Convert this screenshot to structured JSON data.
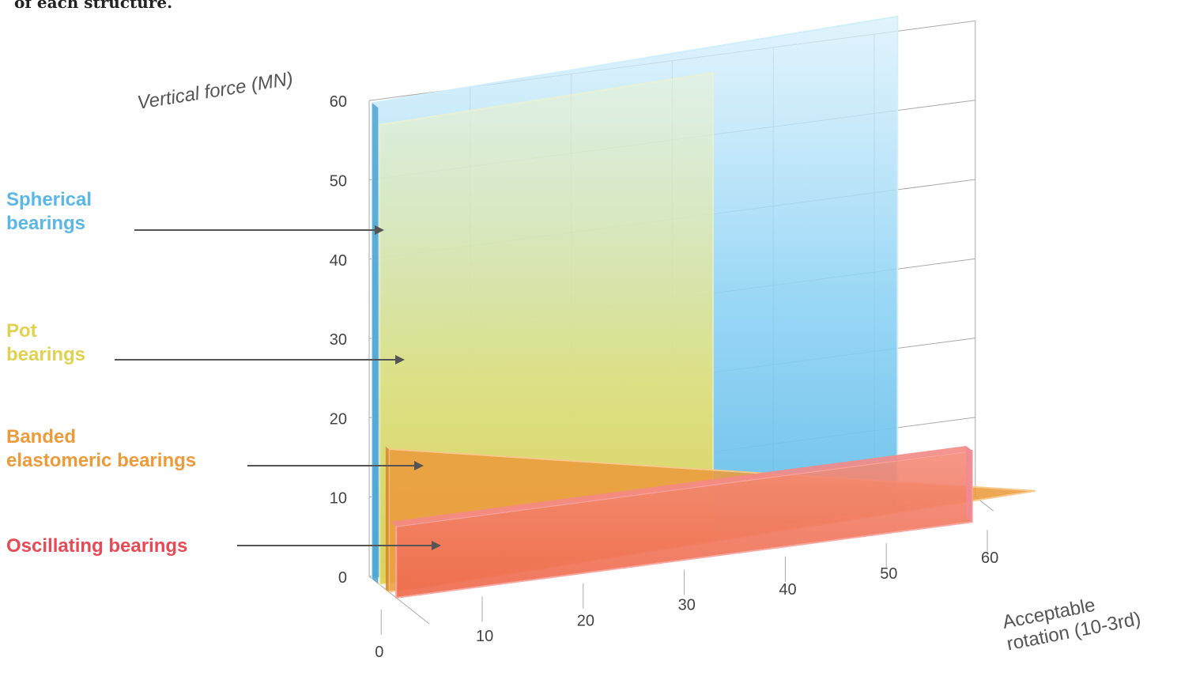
{
  "caption": "of each structure.",
  "colors": {
    "spherical": "#5BB8E6",
    "pot": "#E0D24F",
    "banded": "#EC9B3B",
    "oscillating": "#E84A55",
    "grid": "#A9A9A9",
    "arrow": "#555555"
  },
  "chart_data": {
    "type": "area",
    "grid": true,
    "ylabel": "Vertical force (MN)",
    "xlabel": "Acceptable rotation (10-3rd)",
    "yticks": [
      "0",
      "10",
      "20",
      "30",
      "40",
      "50",
      "60"
    ],
    "xticks": [
      "0",
      "10",
      "20",
      "30",
      "40",
      "50",
      "60"
    ],
    "ylim": [
      0,
      60
    ],
    "xlim": [
      0,
      60
    ],
    "series": [
      {
        "name": "Spherical bearings",
        "color_key": "spherical",
        "rotation_max": 52,
        "force_max": 60
      },
      {
        "name": "Pot bearings",
        "color_key": "pot",
        "rotation_max": 33,
        "force_max": 58
      },
      {
        "name": "Banded elastomeric bearings",
        "color_key": "banded",
        "rotation_max": 64,
        "force_max_at_zero_rotation": 18,
        "force_at_max_rotation": 0
      },
      {
        "name": "Oscillating bearings",
        "color_key": "oscillating",
        "rotation_max": 57,
        "force_max": 9
      }
    ]
  },
  "legend": [
    {
      "line1": "Spherical",
      "line2": "bearings",
      "color_key": "spherical"
    },
    {
      "line1": "Pot",
      "line2": "bearings",
      "color_key": "pot"
    },
    {
      "line1": "Banded",
      "line2": "elastomeric bearings",
      "color_key": "banded"
    },
    {
      "line1": "Oscillating bearings",
      "line2": "",
      "color_key": "oscillating"
    }
  ]
}
